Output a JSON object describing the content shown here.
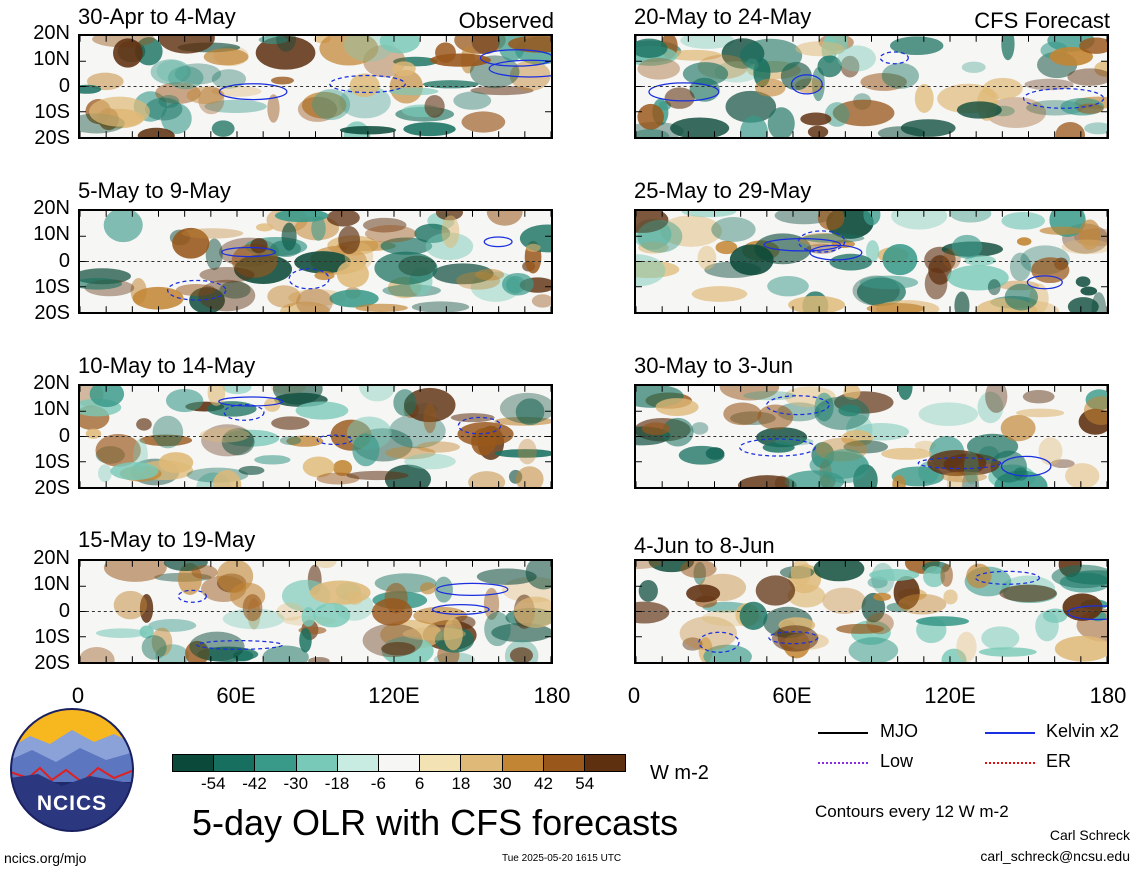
{
  "panels": [
    {
      "title": "30-Apr to 4-May",
      "tag": "Observed"
    },
    {
      "title": "20-May to 24-May",
      "tag": "CFS Forecast"
    },
    {
      "title": "5-May to 9-May",
      "tag": ""
    },
    {
      "title": "25-May to 29-May",
      "tag": ""
    },
    {
      "title": "10-May to 14-May",
      "tag": ""
    },
    {
      "title": "30-May to 3-Jun",
      "tag": ""
    },
    {
      "title": "15-May to 19-May",
      "tag": ""
    },
    {
      "title": "4-Jun to 8-Jun",
      "tag": ""
    }
  ],
  "y_ticks": [
    "20N",
    "10N",
    "0",
    "10S",
    "20S"
  ],
  "x_ticks": [
    "0",
    "60E",
    "120E",
    "180"
  ],
  "colorbar": {
    "labels": [
      "-54",
      "-42",
      "-30",
      "-18",
      "-6",
      "6",
      "18",
      "30",
      "42",
      "54"
    ],
    "colors": [
      "#0b4a3a",
      "#17705f",
      "#3a9a8a",
      "#79c9b8",
      "#c9ece2",
      "#f6f6f4",
      "#f3e2b4",
      "#dfb977",
      "#c28533",
      "#99571b",
      "#5e3010"
    ],
    "units": "W m-2"
  },
  "legend": {
    "mjo": "MJO",
    "kelvin": "Kelvin x2",
    "low": "Low",
    "er": "ER",
    "colors": {
      "mjo": "#000000",
      "kelvin": "#1a2fe0",
      "low": "#8a2be2",
      "er": "#e01010"
    }
  },
  "contour_note": "Contours every 12 W m-2",
  "main_title": "5-day OLR with CFS forecasts",
  "logo_text": "NCICS",
  "url": "ncics.org/mjo",
  "timestamp": "Tue 2025-05-20 1615 UTC",
  "author": "Carl Schreck",
  "email": "carl_schreck@ncsu.edu",
  "chart_data": {
    "type": "heatmap",
    "title": "5-day OLR with CFS forecasts",
    "variable": "OLR anomaly",
    "units": "W m-2",
    "x_ticks": [
      "0",
      "60E",
      "120E",
      "180"
    ],
    "y_ticks": [
      "20N",
      "10N",
      "0",
      "10S",
      "20S"
    ],
    "xlim": [
      0,
      180
    ],
    "ylim": [
      -20,
      20
    ],
    "color_levels": [
      -54,
      -42,
      -30,
      -18,
      -6,
      6,
      18,
      30,
      42,
      54
    ],
    "contour_interval": 12,
    "panels": [
      {
        "period": "30-Apr to 4-May",
        "source": "Observed"
      },
      {
        "period": "5-May to 9-May",
        "source": "Observed"
      },
      {
        "period": "10-May to 14-May",
        "source": "Observed"
      },
      {
        "period": "15-May to 19-May",
        "source": "Observed"
      },
      {
        "period": "20-May to 24-May",
        "source": "CFS Forecast"
      },
      {
        "period": "25-May to 29-May",
        "source": "CFS Forecast"
      },
      {
        "period": "30-May to 3-Jun",
        "source": "CFS Forecast"
      },
      {
        "period": "4-Jun to 8-Jun",
        "source": "CFS Forecast"
      }
    ]
  }
}
